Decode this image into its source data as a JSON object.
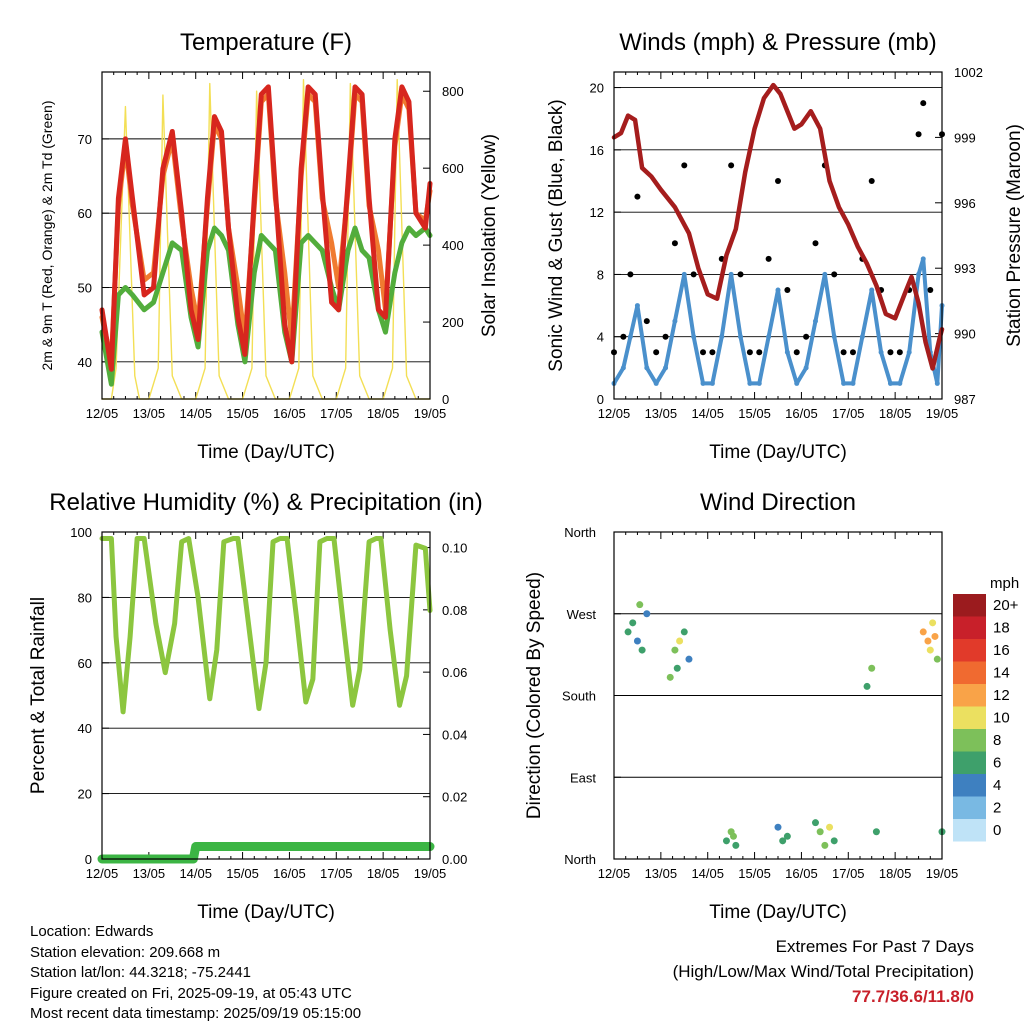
{
  "chart_data": [
    {
      "type": "line",
      "title": "Temperature (F)",
      "xlabel": "Time (Day/UTC)",
      "ylabel": "2m & 9m T (Red, Orange) & 2m Td (Green)",
      "y2label": "Solar Insolation (Yellow)",
      "x_ticks": [
        "12/05",
        "13/05",
        "14/05",
        "15/05",
        "16/05",
        "17/05",
        "18/05",
        "19/05"
      ],
      "ylim": [
        35,
        79
      ],
      "y_ticks": [
        40,
        50,
        60,
        70
      ],
      "y2lim": [
        0,
        850
      ],
      "y2_ticks": [
        0,
        200,
        400,
        600,
        800
      ],
      "grid": true,
      "colors": {
        "t2m": "#d7261e",
        "t9m": "#f07b30",
        "td2m": "#52ad3c",
        "solar": "#f3df55"
      },
      "series": [
        {
          "key": "t2m",
          "x": [
            12.0,
            12.2,
            12.35,
            12.5,
            12.65,
            12.9,
            13.1,
            13.3,
            13.5,
            13.7,
            13.9,
            14.05,
            14.25,
            14.4,
            14.55,
            14.7,
            14.9,
            15.05,
            15.25,
            15.4,
            15.55,
            15.7,
            15.9,
            16.05,
            16.25,
            16.4,
            16.55,
            16.7,
            16.9,
            17.05,
            17.25,
            17.4,
            17.55,
            17.7,
            17.9,
            18.05,
            18.25,
            18.4,
            18.55,
            18.7,
            18.9,
            19.0
          ],
          "values": [
            47,
            39,
            62,
            70,
            62,
            49,
            50,
            66,
            71,
            60,
            47,
            43,
            62,
            73,
            71,
            58,
            46,
            41,
            62,
            76,
            77,
            63,
            45,
            40,
            66,
            77,
            76,
            63,
            48,
            47,
            64,
            77,
            76,
            62,
            47,
            46,
            70,
            77,
            75,
            60,
            58,
            64
          ]
        },
        {
          "key": "t9m",
          "x": [
            12.0,
            12.2,
            12.35,
            12.5,
            12.65,
            12.9,
            13.1,
            13.3,
            13.5,
            13.7,
            13.9,
            14.05,
            14.25,
            14.4,
            14.55,
            14.7,
            14.9,
            15.05,
            15.25,
            15.4,
            15.55,
            15.7,
            15.9,
            16.05,
            16.25,
            16.4,
            16.55,
            16.7,
            16.9,
            17.05,
            17.25,
            17.4,
            17.55,
            17.7,
            17.9,
            18.05,
            18.25,
            18.4,
            18.55,
            18.7,
            18.9,
            19.0
          ],
          "values": [
            46,
            40,
            61,
            69,
            61,
            51,
            52,
            65,
            70,
            59,
            50,
            45,
            61,
            72,
            70,
            58,
            50,
            43,
            61,
            75,
            76,
            62,
            52,
            43,
            65,
            76,
            75,
            62,
            56,
            50,
            63,
            76,
            75,
            61,
            55,
            47,
            69,
            76,
            74,
            60,
            59,
            63
          ]
        },
        {
          "key": "td2m",
          "x": [
            12.0,
            12.2,
            12.35,
            12.5,
            12.65,
            12.9,
            13.1,
            13.3,
            13.5,
            13.7,
            13.9,
            14.05,
            14.25,
            14.4,
            14.55,
            14.7,
            14.9,
            15.05,
            15.25,
            15.4,
            15.55,
            15.7,
            15.9,
            16.05,
            16.25,
            16.4,
            16.55,
            16.7,
            16.9,
            17.05,
            17.25,
            17.4,
            17.55,
            17.7,
            17.9,
            18.05,
            18.25,
            18.4,
            18.55,
            18.7,
            18.9,
            19.0
          ],
          "values": [
            44,
            37,
            49,
            50,
            49,
            47,
            48,
            52,
            56,
            55,
            46,
            42,
            55,
            58,
            57,
            55,
            45,
            40,
            52,
            57,
            56,
            55,
            44,
            40,
            56,
            57,
            56,
            55,
            50,
            47,
            55,
            58,
            55,
            54,
            47,
            44,
            52,
            56,
            58,
            57,
            58,
            57
          ]
        },
        {
          "key": "solar",
          "x": [
            12.0,
            12.2,
            12.3,
            12.5,
            12.7,
            12.8,
            13.0,
            13.2,
            13.3,
            13.5,
            13.7,
            13.8,
            14.0,
            14.2,
            14.3,
            14.5,
            14.7,
            14.8,
            15.0,
            15.2,
            15.3,
            15.5,
            15.7,
            15.8,
            16.0,
            16.2,
            16.3,
            16.5,
            16.7,
            16.8,
            17.0,
            17.2,
            17.3,
            17.5,
            17.7,
            17.8,
            18.0,
            18.2,
            18.3,
            18.5,
            18.7,
            18.8,
            19.0
          ],
          "values": [
            0,
            0,
            80,
            760,
            60,
            0,
            0,
            80,
            790,
            60,
            0,
            0,
            0,
            80,
            820,
            60,
            0,
            0,
            0,
            80,
            800,
            60,
            0,
            0,
            0,
            80,
            830,
            60,
            0,
            0,
            0,
            80,
            820,
            60,
            0,
            0,
            0,
            80,
            830,
            60,
            0,
            0,
            0
          ]
        }
      ]
    },
    {
      "type": "scatter",
      "title": "Winds (mph) & Pressure (mb)",
      "xlabel": "Time (Day/UTC)",
      "ylabel": "Sonic Wind & Gust (Blue, Black)",
      "y2label": "Station Pressure (Maroon)",
      "x_ticks": [
        "12/05",
        "13/05",
        "14/05",
        "15/05",
        "16/05",
        "17/05",
        "18/05",
        "19/05"
      ],
      "ylim": [
        0,
        21
      ],
      "y_ticks": [
        0,
        4,
        8,
        12,
        16,
        20
      ],
      "y2lim": [
        987,
        1002
      ],
      "y2_ticks": [
        987,
        990,
        993,
        996,
        999,
        1002
      ],
      "grid": true,
      "colors": {
        "wind": "#4a90cc",
        "gust": "#000000",
        "pressure": "#a51d1d"
      },
      "series": [
        {
          "key": "wind",
          "x": [
            12.0,
            12.2,
            12.35,
            12.5,
            12.7,
            12.9,
            13.1,
            13.3,
            13.5,
            13.7,
            13.9,
            14.1,
            14.3,
            14.5,
            14.7,
            14.9,
            15.1,
            15.3,
            15.5,
            15.7,
            15.9,
            16.1,
            16.3,
            16.5,
            16.7,
            16.9,
            17.1,
            17.3,
            17.5,
            17.7,
            17.9,
            18.1,
            18.3,
            18.5,
            18.6,
            18.75,
            18.9,
            19.0
          ],
          "values": [
            1,
            2,
            4,
            6,
            2,
            1,
            2,
            5,
            8,
            4,
            1,
            1,
            4,
            8,
            4,
            1,
            1,
            4,
            7,
            3,
            1,
            2,
            5,
            8,
            4,
            1,
            1,
            4,
            7,
            3,
            1,
            1,
            3,
            8,
            9,
            3,
            1,
            6
          ]
        },
        {
          "key": "gust",
          "x": [
            12.0,
            12.2,
            12.35,
            12.5,
            12.7,
            12.9,
            13.1,
            13.3,
            13.5,
            13.7,
            13.9,
            14.1,
            14.3,
            14.5,
            14.7,
            14.9,
            15.1,
            15.3,
            15.5,
            15.7,
            15.9,
            16.1,
            16.3,
            16.5,
            16.7,
            16.9,
            17.1,
            17.3,
            17.5,
            17.7,
            17.9,
            18.1,
            18.3,
            18.5,
            18.6,
            18.75,
            18.9,
            19.0
          ],
          "values": [
            3,
            4,
            8,
            13,
            5,
            3,
            4,
            10,
            15,
            8,
            3,
            3,
            9,
            15,
            8,
            3,
            3,
            9,
            14,
            7,
            3,
            4,
            10,
            15,
            8,
            3,
            3,
            9,
            14,
            7,
            3,
            3,
            7,
            17,
            19,
            7,
            3,
            17
          ]
        },
        {
          "key": "pressure",
          "x": [
            12.0,
            12.15,
            12.3,
            12.45,
            12.6,
            12.8,
            13.0,
            13.3,
            13.6,
            13.8,
            14.0,
            14.2,
            14.4,
            14.6,
            14.8,
            15.0,
            15.2,
            15.4,
            15.55,
            15.7,
            15.85,
            16.0,
            16.2,
            16.4,
            16.6,
            16.8,
            17.0,
            17.2,
            17.4,
            17.6,
            17.8,
            18.0,
            18.2,
            18.35,
            18.5,
            18.65,
            18.8,
            18.95,
            19.0
          ],
          "values": [
            999.0,
            999.2,
            1000.0,
            999.8,
            997.6,
            997.2,
            996.6,
            995.8,
            994.6,
            993.0,
            991.8,
            991.6,
            993.6,
            994.8,
            997.4,
            999.4,
            1000.8,
            1001.4,
            1001.0,
            1000.2,
            999.4,
            999.6,
            1000.2,
            999.4,
            997.0,
            995.8,
            995.0,
            994.0,
            993.2,
            992.2,
            990.9,
            990.7,
            991.8,
            992.6,
            991.4,
            989.6,
            988.4,
            989.8,
            990.2
          ]
        }
      ]
    },
    {
      "type": "line",
      "title": "Relative Humidity (%) & Precipitation (in)",
      "xlabel": "Time (Day/UTC)",
      "ylabel": "Percent & Total Rainfall",
      "x_ticks": [
        "12/05",
        "13/05",
        "14/05",
        "15/05",
        "16/05",
        "17/05",
        "18/05",
        "19/05"
      ],
      "ylim": [
        0,
        100
      ],
      "y_ticks": [
        0,
        20,
        40,
        60,
        80,
        100
      ],
      "y2lim": [
        0,
        0.105
      ],
      "y2_ticks": [
        "0.00",
        "0.02",
        "0.04",
        "0.06",
        "0.08",
        "0.10"
      ],
      "grid": true,
      "colors": {
        "rh": "#8cc63f",
        "precip": "#3cb544"
      },
      "series": [
        {
          "key": "rh",
          "x": [
            12.0,
            12.2,
            12.3,
            12.45,
            12.6,
            12.75,
            12.9,
            13.15,
            13.35,
            13.55,
            13.7,
            13.85,
            14.05,
            14.3,
            14.45,
            14.6,
            14.8,
            14.9,
            15.1,
            15.35,
            15.5,
            15.65,
            15.8,
            15.95,
            16.15,
            16.35,
            16.5,
            16.65,
            16.8,
            16.95,
            17.15,
            17.35,
            17.5,
            17.7,
            17.85,
            17.95,
            18.15,
            18.35,
            18.5,
            18.7,
            18.9,
            19.0
          ],
          "values": [
            98,
            98,
            68,
            45,
            68,
            98,
            98,
            72,
            57,
            72,
            97,
            98,
            80,
            49,
            64,
            97,
            98,
            98,
            75,
            46,
            60,
            97,
            98,
            98,
            74,
            48,
            55,
            97,
            98,
            98,
            72,
            47,
            58,
            97,
            98,
            98,
            70,
            47,
            56,
            96,
            95,
            76
          ]
        },
        {
          "key": "precip",
          "x": [
            12.0,
            13.95,
            14.0,
            19.0
          ],
          "values": [
            0,
            0,
            0.004,
            0.004
          ]
        }
      ]
    },
    {
      "type": "scatter",
      "title": "Wind Direction",
      "xlabel": "Time (Day/UTC)",
      "ylabel": "Direction (Colored By Speed)",
      "x_ticks": [
        "12/05",
        "13/05",
        "14/05",
        "15/05",
        "16/05",
        "17/05",
        "18/05",
        "19/05"
      ],
      "y_ticks": [
        "North",
        "East",
        "South",
        "West",
        "North"
      ],
      "ylim": [
        0,
        360
      ],
      "grid": true,
      "legend": {
        "title": "mph",
        "position": "right",
        "labels": [
          "20+",
          "18",
          "16",
          "14",
          "12",
          "10",
          "8",
          "6",
          "4",
          "2",
          "0"
        ],
        "colors": [
          "#9b1b1e",
          "#c8202a",
          "#e13a2a",
          "#f06a30",
          "#f9a348",
          "#ebe060",
          "#7dc05a",
          "#3ea06b",
          "#3e80c0",
          "#79b9e3",
          "#bfe3f7"
        ]
      },
      "series": [
        {
          "name": "",
          "x": [
            12.3,
            12.4,
            12.5,
            12.55,
            12.6,
            12.7,
            13.2,
            13.3,
            13.35,
            13.4,
            13.5,
            13.6,
            14.4,
            14.5,
            14.55,
            14.6,
            15.5,
            15.6,
            15.7,
            16.3,
            16.4,
            16.5,
            16.6,
            16.7,
            17.4,
            17.5,
            17.6,
            18.6,
            18.7,
            18.75,
            18.8,
            18.85,
            18.9,
            19.0
          ],
          "y": [
            250,
            260,
            240,
            280,
            230,
            270,
            200,
            230,
            210,
            240,
            250,
            220,
            20,
            30,
            25,
            15,
            35,
            20,
            25,
            40,
            30,
            15,
            35,
            20,
            190,
            210,
            30,
            250,
            240,
            230,
            260,
            245,
            220,
            30
          ],
          "speed": [
            5,
            6,
            4,
            7,
            5,
            3,
            7,
            8,
            6,
            9,
            5,
            4,
            6,
            7,
            8,
            5,
            4,
            6,
            5,
            6,
            7,
            8,
            9,
            6,
            6,
            7,
            5,
            11,
            12,
            10,
            9,
            11,
            8,
            5
          ]
        }
      ]
    }
  ],
  "info": {
    "location": "Location: Edwards",
    "elevation": "Station elevation: 209.668 m",
    "latlon": "Station lat/lon: 44.3218; -75.2441",
    "created": "Figure created on Fri, 2025-09-19, at 05:43 UTC",
    "latest": "Most recent data timestamp: 2025/09/19 05:15:00"
  },
  "extremes": {
    "line1": "Extremes For Past 7 Days",
    "line2": "(High/Low/Max Wind/Total Precipitation)",
    "values": "77.7/36.6/11.8/0"
  }
}
